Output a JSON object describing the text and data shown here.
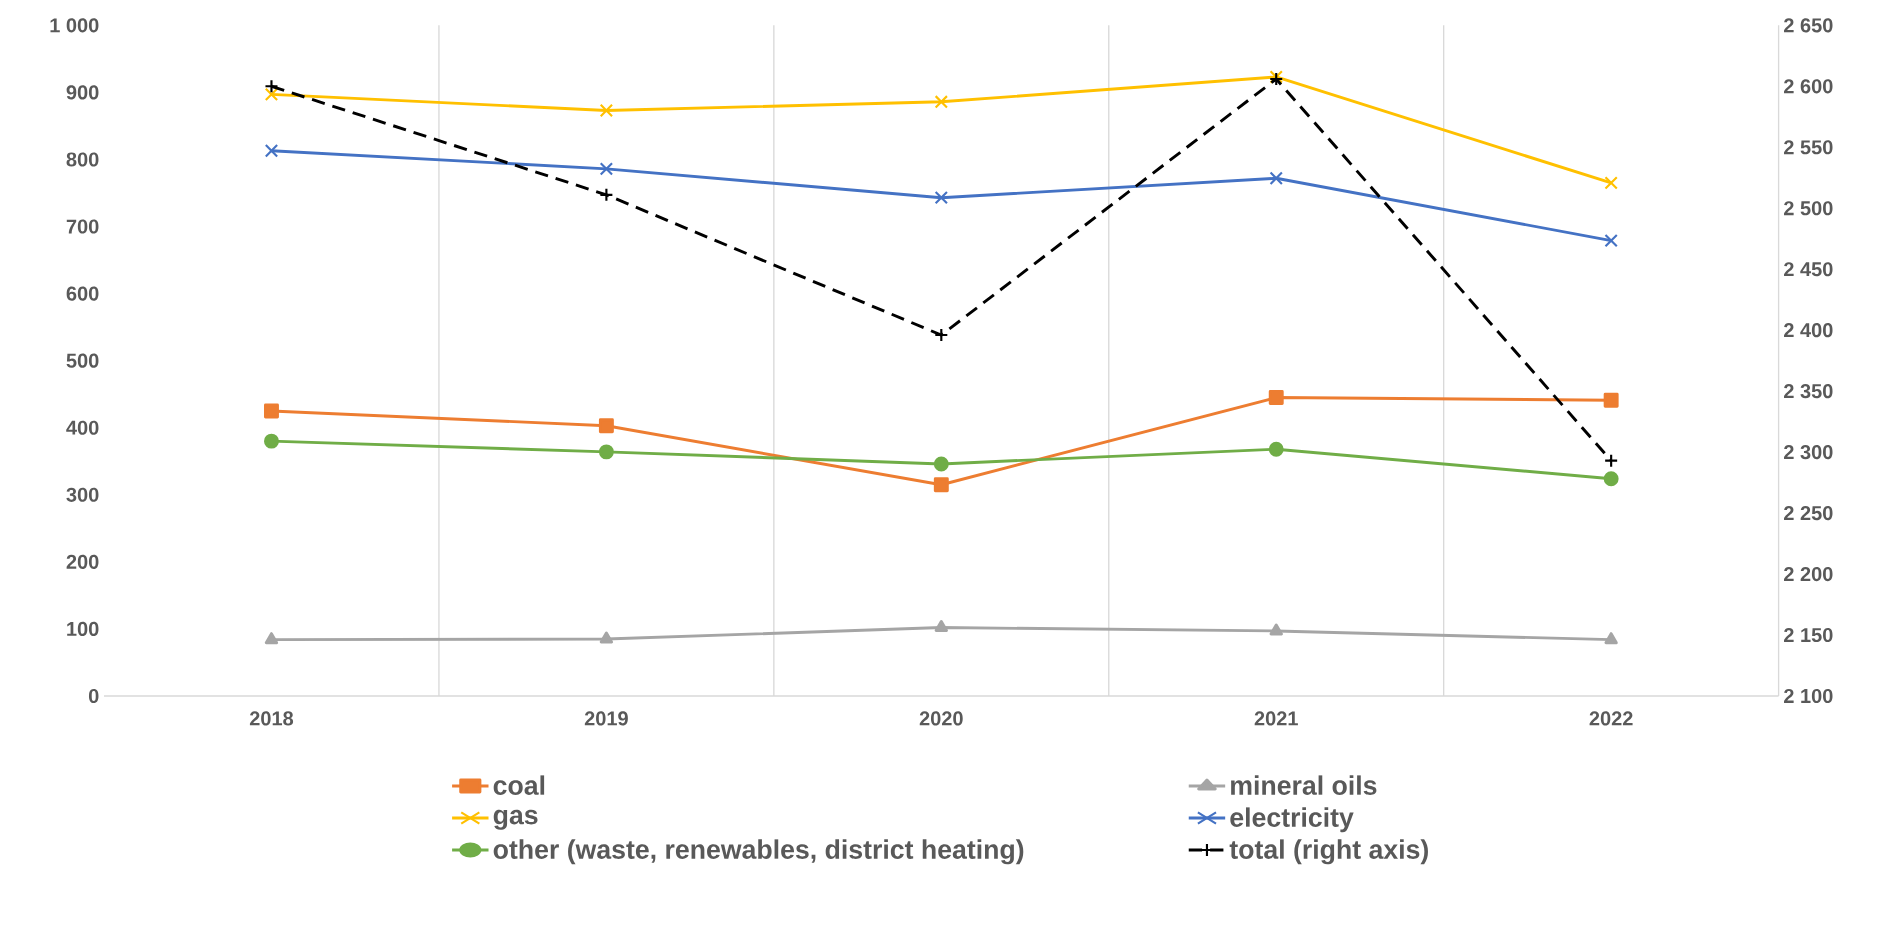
{
  "chart_data": {
    "type": "line",
    "categories": [
      "2018",
      "2019",
      "2020",
      "2021",
      "2022"
    ],
    "series": [
      {
        "name": "coal",
        "color": "#ed7d31",
        "marker": "square",
        "values": [
          425,
          403,
          315,
          445,
          441
        ]
      },
      {
        "name": "mineral oils",
        "color": "#a5a5a5",
        "marker": "triangle",
        "values": [
          84,
          85,
          102,
          97,
          84
        ]
      },
      {
        "name": "gas",
        "color": "#ffc000",
        "marker": "cross",
        "values": [
          897,
          873,
          886,
          923,
          765
        ]
      },
      {
        "name": "electricity",
        "color": "#4472c4",
        "marker": "cross",
        "values": [
          813,
          786,
          743,
          772,
          679
        ]
      },
      {
        "name": "other (waste, renewables, district heating)",
        "color": "#70ad47",
        "marker": "circle",
        "values": [
          380,
          364,
          346,
          368,
          324
        ]
      },
      {
        "name": "total (right axis)",
        "color": "#000000",
        "marker": "plus",
        "line_style": "dashed",
        "axis": "y2",
        "values": [
          2600,
          2511,
          2396,
          2606,
          2293
        ]
      }
    ],
    "ylim": [
      0,
      1000
    ],
    "yticks": [
      0,
      100,
      200,
      300,
      400,
      500,
      600,
      700,
      800,
      900,
      {
        "value": 1000,
        "label": "1 000"
      }
    ],
    "y2lim": [
      2100,
      2650
    ],
    "y2ticks": [
      {
        "value": 2100,
        "label": "2 100"
      },
      {
        "value": 2150,
        "label": "2 150"
      },
      {
        "value": 2200,
        "label": "2 200"
      },
      {
        "value": 2250,
        "label": "2 250"
      },
      {
        "value": 2300,
        "label": "2 300"
      },
      {
        "value": 2350,
        "label": "2 350"
      },
      {
        "value": 2400,
        "label": "2 400"
      },
      {
        "value": 2450,
        "label": "2 450"
      },
      {
        "value": 2500,
        "label": "2 500"
      },
      {
        "value": 2550,
        "label": "2 550"
      },
      {
        "value": 2600,
        "label": "2 600"
      },
      {
        "value": 2650,
        "label": "2 650"
      }
    ],
    "grid": "x",
    "legend": "bottom"
  }
}
